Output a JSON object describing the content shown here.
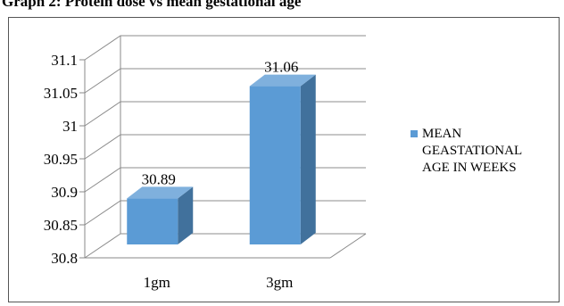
{
  "caption": "Graph 2: Protein dose vs mean gestational age",
  "chart_data": {
    "type": "bar",
    "style": "3d-column",
    "categories": [
      "1gm",
      "3gm"
    ],
    "series": [
      {
        "name": "MEAN GEASTATIONAL AGE IN WEEKS",
        "values": [
          30.89,
          31.06
        ],
        "color": "#5b9bd5"
      }
    ],
    "ylim": [
      30.8,
      31.1
    ],
    "yticks": [
      "30.8",
      "30.85",
      "30.9",
      "30.95",
      "31",
      "31.05",
      "31.1"
    ],
    "data_labels": [
      "30.89",
      "31.06"
    ],
    "legend_position": "right",
    "gridlines": true
  }
}
